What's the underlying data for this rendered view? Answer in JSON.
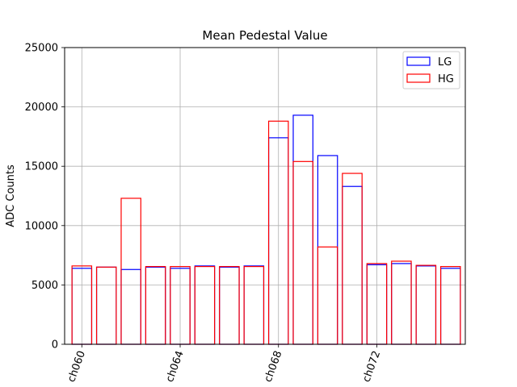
{
  "chart_data": {
    "type": "bar",
    "title": "Mean Pedestal Value",
    "xlabel": "",
    "ylabel": "ADC Counts",
    "ylim": [
      0,
      25000
    ],
    "yticks": [
      0,
      5000,
      10000,
      15000,
      20000,
      25000
    ],
    "grid": true,
    "legend_position": "top-right",
    "x_tick_labels": [
      "ch060",
      "ch064",
      "ch068",
      "ch072"
    ],
    "x_tick_channels": [
      60,
      64,
      68,
      72
    ],
    "channels": [
      60,
      61,
      62,
      63,
      64,
      65,
      66,
      67,
      68,
      69,
      70,
      71,
      72,
      73,
      74,
      75
    ],
    "series": [
      {
        "name": "LG",
        "color": "#0000ff",
        "values": [
          6400,
          6500,
          6300,
          6500,
          6400,
          6600,
          6500,
          6600,
          17400,
          19300,
          15900,
          13300,
          6700,
          6800,
          6600,
          6400
        ]
      },
      {
        "name": "HG",
        "color": "#ff0000",
        "values": [
          6600,
          6500,
          12300,
          6550,
          6550,
          6550,
          6550,
          6550,
          18800,
          15400,
          8200,
          14400,
          6800,
          7000,
          6650,
          6550
        ]
      }
    ]
  }
}
